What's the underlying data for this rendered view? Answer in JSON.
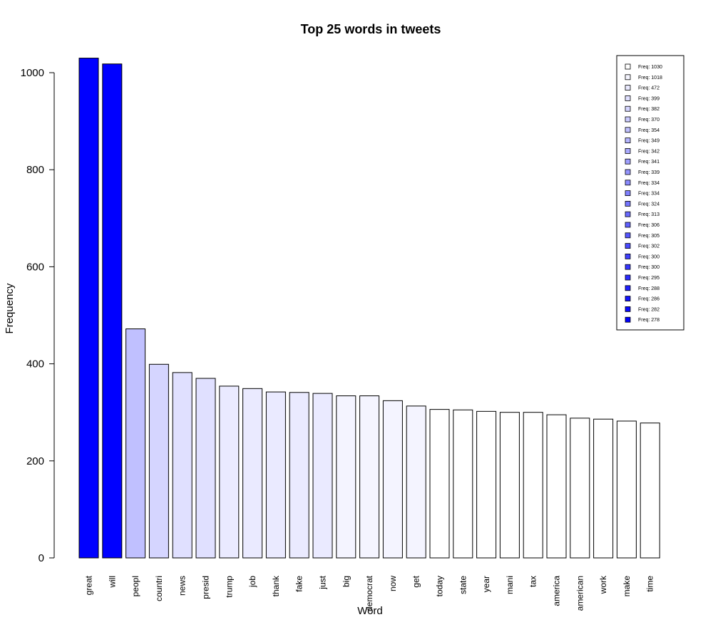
{
  "chart_data": {
    "type": "bar",
    "title": "Top 25 words in tweets",
    "xlabel": "Word",
    "ylabel": "Frequency",
    "ylim": [
      0,
      1030
    ],
    "yticks": [
      0,
      200,
      400,
      600,
      800,
      1000
    ],
    "categories": [
      "great",
      "will",
      "peopl",
      "countri",
      "news",
      "presid",
      "trump",
      "job",
      "thank",
      "fake",
      "just",
      "big",
      "democrat",
      "now",
      "get",
      "today",
      "state",
      "year",
      "mani",
      "tax",
      "america",
      "american",
      "work",
      "make",
      "time"
    ],
    "values": [
      1030,
      1018,
      472,
      399,
      382,
      370,
      354,
      349,
      342,
      341,
      339,
      334,
      334,
      324,
      313,
      306,
      305,
      302,
      300,
      300,
      295,
      288,
      286,
      282,
      278
    ],
    "bar_colors": [
      "#0000FF",
      "#0000FF",
      "#C0C0FF",
      "#D5D5FF",
      "#E0E0FF",
      "#E0E0FF",
      "#EAEAFF",
      "#EAEAFF",
      "#EAEAFF",
      "#EAEAFF",
      "#EAEAFF",
      "#F4F4FF",
      "#F4F4FF",
      "#F4F4FF",
      "#F4F4FF",
      "#FFFFFF",
      "#FFFFFF",
      "#FFFFFF",
      "#FFFFFF",
      "#FFFFFF",
      "#FFFFFF",
      "#FFFFFF",
      "#FFFFFF",
      "#FFFFFF",
      "#FFFFFF"
    ],
    "legend": {
      "position": "top-right",
      "entries": [
        "Freq: 1030",
        "Freq: 1018",
        "Freq: 472",
        "Freq: 399",
        "Freq: 382",
        "Freq: 370",
        "Freq: 354",
        "Freq: 349",
        "Freq: 342",
        "Freq: 341",
        "Freq: 339",
        "Freq: 334",
        "Freq: 334",
        "Freq: 324",
        "Freq: 313",
        "Freq: 306",
        "Freq: 305",
        "Freq: 302",
        "Freq: 300",
        "Freq: 300",
        "Freq: 295",
        "Freq: 288",
        "Freq: 286",
        "Freq: 282",
        "Freq: 278"
      ],
      "colors": [
        "#FFFFFF",
        "#F5F5FF",
        "#EAEAFF",
        "#E0E0FF",
        "#D5D5FF",
        "#CBCBFF",
        "#C0C0FF",
        "#B5B5FF",
        "#AAAAFF",
        "#A0A0FF",
        "#9595FF",
        "#8A8AFF",
        "#8080FF",
        "#7575FF",
        "#6A6AFF",
        "#6060FF",
        "#5555FF",
        "#4A4AFF",
        "#4040FF",
        "#3535FF",
        "#2A2AFF",
        "#2020FF",
        "#1515FF",
        "#0A0AFF",
        "#0000FF"
      ]
    },
    "grid": false
  }
}
